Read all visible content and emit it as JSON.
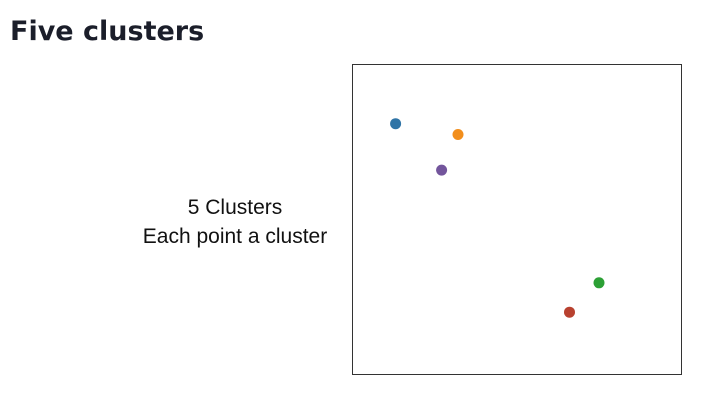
{
  "page": {
    "title": "Five clusters"
  },
  "caption": {
    "line1": "5 Clusters",
    "line2": "Each point a cluster"
  },
  "chart_data": {
    "type": "scatter",
    "title": "",
    "xlabel": "",
    "ylabel": "",
    "xlim": [
      0,
      10
    ],
    "ylim": [
      0,
      10
    ],
    "grid": false,
    "axes_ticks": false,
    "series": [
      {
        "color": "#2f74a6",
        "points": [
          {
            "x": 1.3,
            "y": 8.1
          }
        ]
      },
      {
        "color": "#f28e1c",
        "points": [
          {
            "x": 3.2,
            "y": 7.75
          }
        ]
      },
      {
        "color": "#73559c",
        "points": [
          {
            "x": 2.7,
            "y": 6.6
          }
        ]
      },
      {
        "color": "#2ca035",
        "points": [
          {
            "x": 7.5,
            "y": 2.95
          }
        ]
      },
      {
        "color": "#b8412f",
        "points": [
          {
            "x": 6.6,
            "y": 2.0
          }
        ]
      }
    ]
  }
}
